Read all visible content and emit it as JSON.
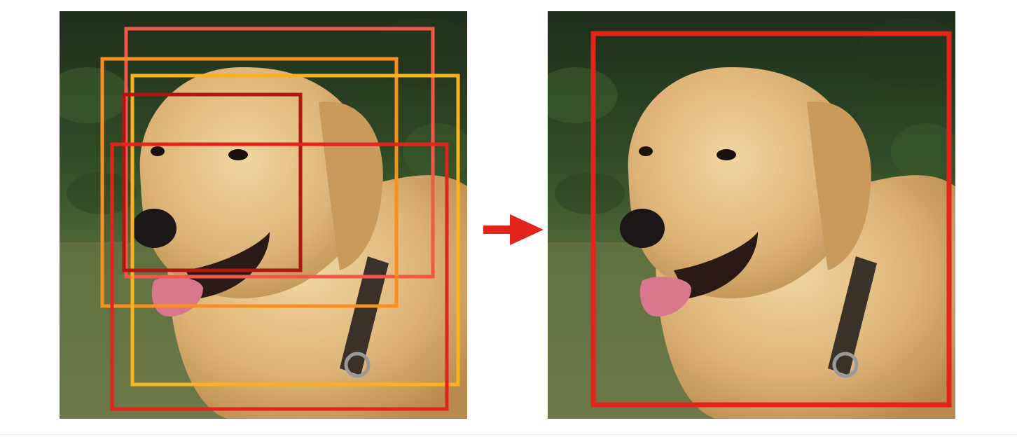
{
  "figure": {
    "left_panel": {
      "subject_icon": "dog-photo-golden-retriever",
      "candidate_boxes": [
        {
          "id": "box-salmon",
          "color": "#f2584a"
        },
        {
          "id": "box-orange",
          "color": "#f7901e"
        },
        {
          "id": "box-amber",
          "color": "#f7b21e"
        },
        {
          "id": "box-darkred",
          "color": "#b0160f"
        },
        {
          "id": "box-red",
          "color": "#e3241c"
        }
      ]
    },
    "arrow": {
      "icon": "right-arrow-icon",
      "color": "#e3241c"
    },
    "right_panel": {
      "subject_icon": "dog-photo-golden-retriever",
      "final_box": {
        "id": "box-final",
        "color": "#e3241c"
      }
    }
  }
}
